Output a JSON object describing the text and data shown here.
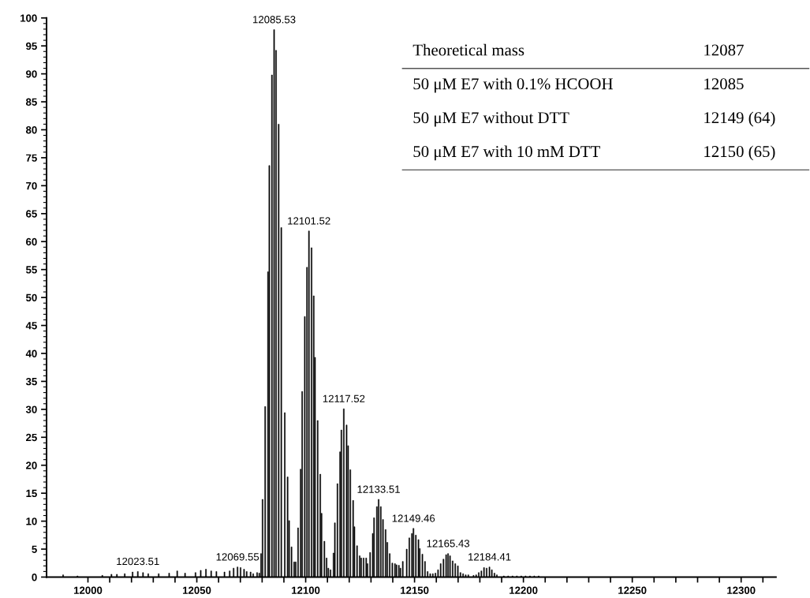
{
  "chart_data": {
    "type": "bar",
    "color": "#000000",
    "x": [
      11988.6,
      11990.4,
      11995.2,
      12006.6,
      12010.8,
      12013.3,
      12016.9,
      12020.5,
      12022.9,
      12025.3,
      12027.7,
      12032.5,
      12037.3,
      12041.0,
      12044.6,
      12049.4,
      12051.8,
      12054.2,
      12056.6,
      12059.0,
      12062.7,
      12065.1,
      12066.9,
      12068.7,
      12070.1,
      12071.7,
      12072.9,
      12074.7,
      12075.9,
      12077.7,
      12078.7,
      12079.5,
      12080.2,
      12081.4,
      12082.7,
      12083.3,
      12084.5,
      12085.5,
      12086.4,
      12087.6,
      12088.8,
      12090.4,
      12091.7,
      12092.4,
      12093.5,
      12094.7,
      12095.4,
      12096.5,
      12097.7,
      12098.4,
      12099.6,
      12100.6,
      12101.5,
      12102.7,
      12103.7,
      12104.3,
      12105.5,
      12106.7,
      12107.3,
      12108.6,
      12109.6,
      12110.4,
      12111.4,
      12112.8,
      12113.4,
      12114.6,
      12115.8,
      12116.4,
      12117.5,
      12118.8,
      12119.5,
      12120.5,
      12121.8,
      12122.4,
      12123.6,
      12124.8,
      12125.5,
      12126.6,
      12127.8,
      12128.4,
      12129.6,
      12130.8,
      12131.4,
      12132.7,
      12133.5,
      12134.5,
      12135.5,
      12136.7,
      12137.5,
      12138.6,
      12139.8,
      12141.0,
      12141.7,
      12142.8,
      12143.5,
      12144.6,
      12146.4,
      12147.6,
      12148.8,
      12149.5,
      12150.6,
      12151.8,
      12152.4,
      12153.6,
      12154.8,
      12156.0,
      12157.2,
      12158.4,
      12159.6,
      12160.8,
      12162.0,
      12163.3,
      12164.5,
      12165.4,
      12166.3,
      12167.5,
      12168.7,
      12169.9,
      12171.1,
      12172.3,
      12173.5,
      12174.7,
      12175.9,
      12177.1,
      12178.3,
      12179.5,
      12180.7,
      12181.9,
      12183.1,
      12184.4,
      12185.5,
      12186.7,
      12187.8,
      12189.2,
      12191.0,
      12193.0,
      12195.0,
      12197.0,
      12199.0,
      12201.0,
      12203.0,
      12205.0,
      12207.0
    ],
    "values": [
      0.4,
      null,
      0.2,
      0.3,
      0.5,
      0.5,
      0.6,
      0.9,
      1.0,
      0.8,
      0.6,
      0.6,
      0.7,
      1.1,
      0.7,
      0.8,
      1.2,
      1.4,
      1.1,
      1.0,
      0.9,
      1.1,
      1.6,
      1.8,
      1.7,
      1.4,
      1.0,
      0.9,
      0.6,
      0.8,
      0.7,
      4.2,
      13.9,
      30.5,
      54.6,
      73.6,
      89.8,
      97.9,
      94.2,
      81.0,
      62.5,
      29.4,
      17.9,
      10.1,
      5.4,
      2.7,
      2.7,
      8.8,
      19.3,
      33.2,
      46.6,
      55.4,
      61.9,
      58.9,
      50.3,
      39.3,
      28.0,
      18.4,
      11.4,
      6.4,
      3.4,
      1.6,
      1.3,
      4.3,
      9.7,
      16.7,
      22.4,
      26.3,
      30.1,
      27.2,
      23.5,
      19.2,
      13.7,
      9.0,
      5.6,
      3.8,
      3.4,
      3.4,
      3.4,
      2.4,
      4.4,
      7.8,
      10.6,
      12.6,
      13.9,
      12.6,
      10.3,
      8.5,
      6.2,
      4.2,
      2.5,
      2.4,
      2.2,
      2.1,
      1.6,
      2.8,
      5.0,
      7.0,
      7.8,
      8.7,
      7.5,
      6.7,
      5.1,
      4.1,
      2.8,
      1.0,
      0.6,
      0.6,
      0.7,
      1.3,
      2.4,
      3.2,
      4.0,
      4.2,
      3.8,
      2.9,
      2.4,
      2.0,
      0.8,
      0.6,
      0.4,
      0.4,
      null,
      0.3,
      0.4,
      0.8,
      1.1,
      1.7,
      1.6,
      1.8,
      1.3,
      0.7,
      0.4,
      null,
      0.2,
      0.2,
      0.2,
      0.2,
      0.2,
      0.2,
      0.2,
      0.2,
      0.2
    ],
    "xlim": [
      11981,
      12316
    ],
    "xticks": [
      12000,
      {
        "value": 12010,
        "label": null
      },
      {
        "value": 12020,
        "label": null
      },
      {
        "value": 12030,
        "label": null
      },
      {
        "value": 12040,
        "label": null
      },
      12050,
      {
        "value": 12060,
        "label": null
      },
      {
        "value": 12070,
        "label": null
      },
      {
        "value": 12080,
        "label": null
      },
      {
        "value": 12090,
        "label": null
      },
      12100,
      {
        "value": 12110,
        "label": null
      },
      {
        "value": 12120,
        "label": null
      },
      {
        "value": 12130,
        "label": null
      },
      {
        "value": 12140,
        "label": null
      },
      12150,
      {
        "value": 12160,
        "label": null
      },
      {
        "value": 12170,
        "label": null
      },
      {
        "value": 12180,
        "label": null
      },
      {
        "value": 12190,
        "label": null
      },
      12200,
      {
        "value": 12210,
        "label": null
      },
      {
        "value": 12220,
        "label": null
      },
      {
        "value": 12230,
        "label": null
      },
      {
        "value": 12240,
        "label": null
      },
      12250,
      {
        "value": 12260,
        "label": null
      },
      {
        "value": 12270,
        "label": null
      },
      {
        "value": 12280,
        "label": null
      },
      {
        "value": 12290,
        "label": null
      },
      12300,
      {
        "value": 12310,
        "label": null
      }
    ],
    "ylim": [
      0,
      100
    ],
    "yticks": [
      0,
      5,
      10,
      15,
      20,
      25,
      30,
      35,
      40,
      45,
      50,
      55,
      60,
      65,
      70,
      75,
      80,
      85,
      90,
      95,
      100
    ],
    "grid": false,
    "annotations": [
      {
        "text": "12085.53",
        "x": 12085.5,
        "y": 97.9
      },
      {
        "text": "12101.52",
        "x": 12101.5,
        "y": 61.9
      },
      {
        "text": "12117.52",
        "x": 12117.5,
        "y": 30.1
      },
      {
        "text": "12133.51",
        "x": 12133.5,
        "y": 13.9
      },
      {
        "text": "12149.46",
        "x": 12149.5,
        "y": 8.7
      },
      {
        "text": "12165.43",
        "x": 12165.4,
        "y": 4.2
      },
      {
        "text": "12184.41",
        "x": 12184.4,
        "y": 1.8
      },
      {
        "text": "12069.55",
        "x": 12068.7,
        "y": 1.8
      },
      {
        "text": "12023.51",
        "x": 12022.9,
        "y": 1.0
      },
      "Theoretical mass",
      "12087",
      "50 μM E7 with 0.1% HCOOH",
      "12085",
      "50 μM E7 without DTT",
      "12149 (64)",
      "50 μM E7 with 10 mM DTT",
      "12150 (65)"
    ]
  }
}
